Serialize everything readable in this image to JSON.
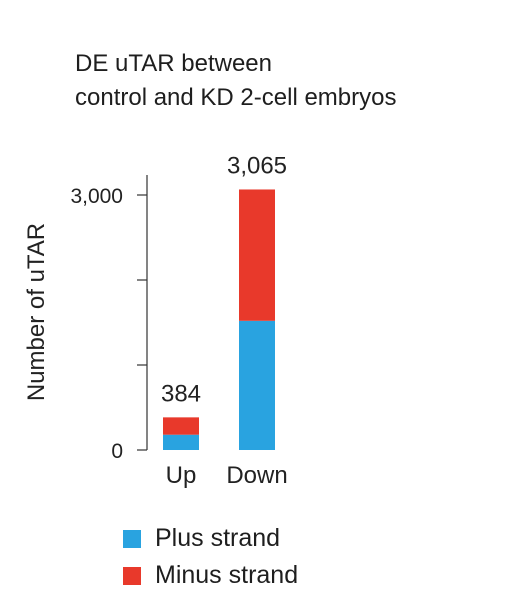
{
  "chart_data": {
    "type": "bar",
    "title": [
      "DE uTAR between",
      "control and KD 2-cell embryos"
    ],
    "xlabel": "",
    "ylabel": "Number of uTAR",
    "categories": [
      "Up",
      "Down"
    ],
    "series": [
      {
        "name": "Plus strand",
        "color": "#29a3e0",
        "values": [
          180,
          1520
        ]
      },
      {
        "name": "Minus strand",
        "color": "#e8392b",
        "values": [
          204,
          1545
        ]
      }
    ],
    "totals": [
      "384",
      "3,065"
    ],
    "ylim": [
      0,
      3000
    ],
    "yticks": [
      0,
      1000,
      2000,
      3000
    ],
    "ytick_labels": [
      "0",
      "",
      "",
      "3,000"
    ],
    "stacked": true,
    "grid": false,
    "legend_position": "bottom"
  }
}
